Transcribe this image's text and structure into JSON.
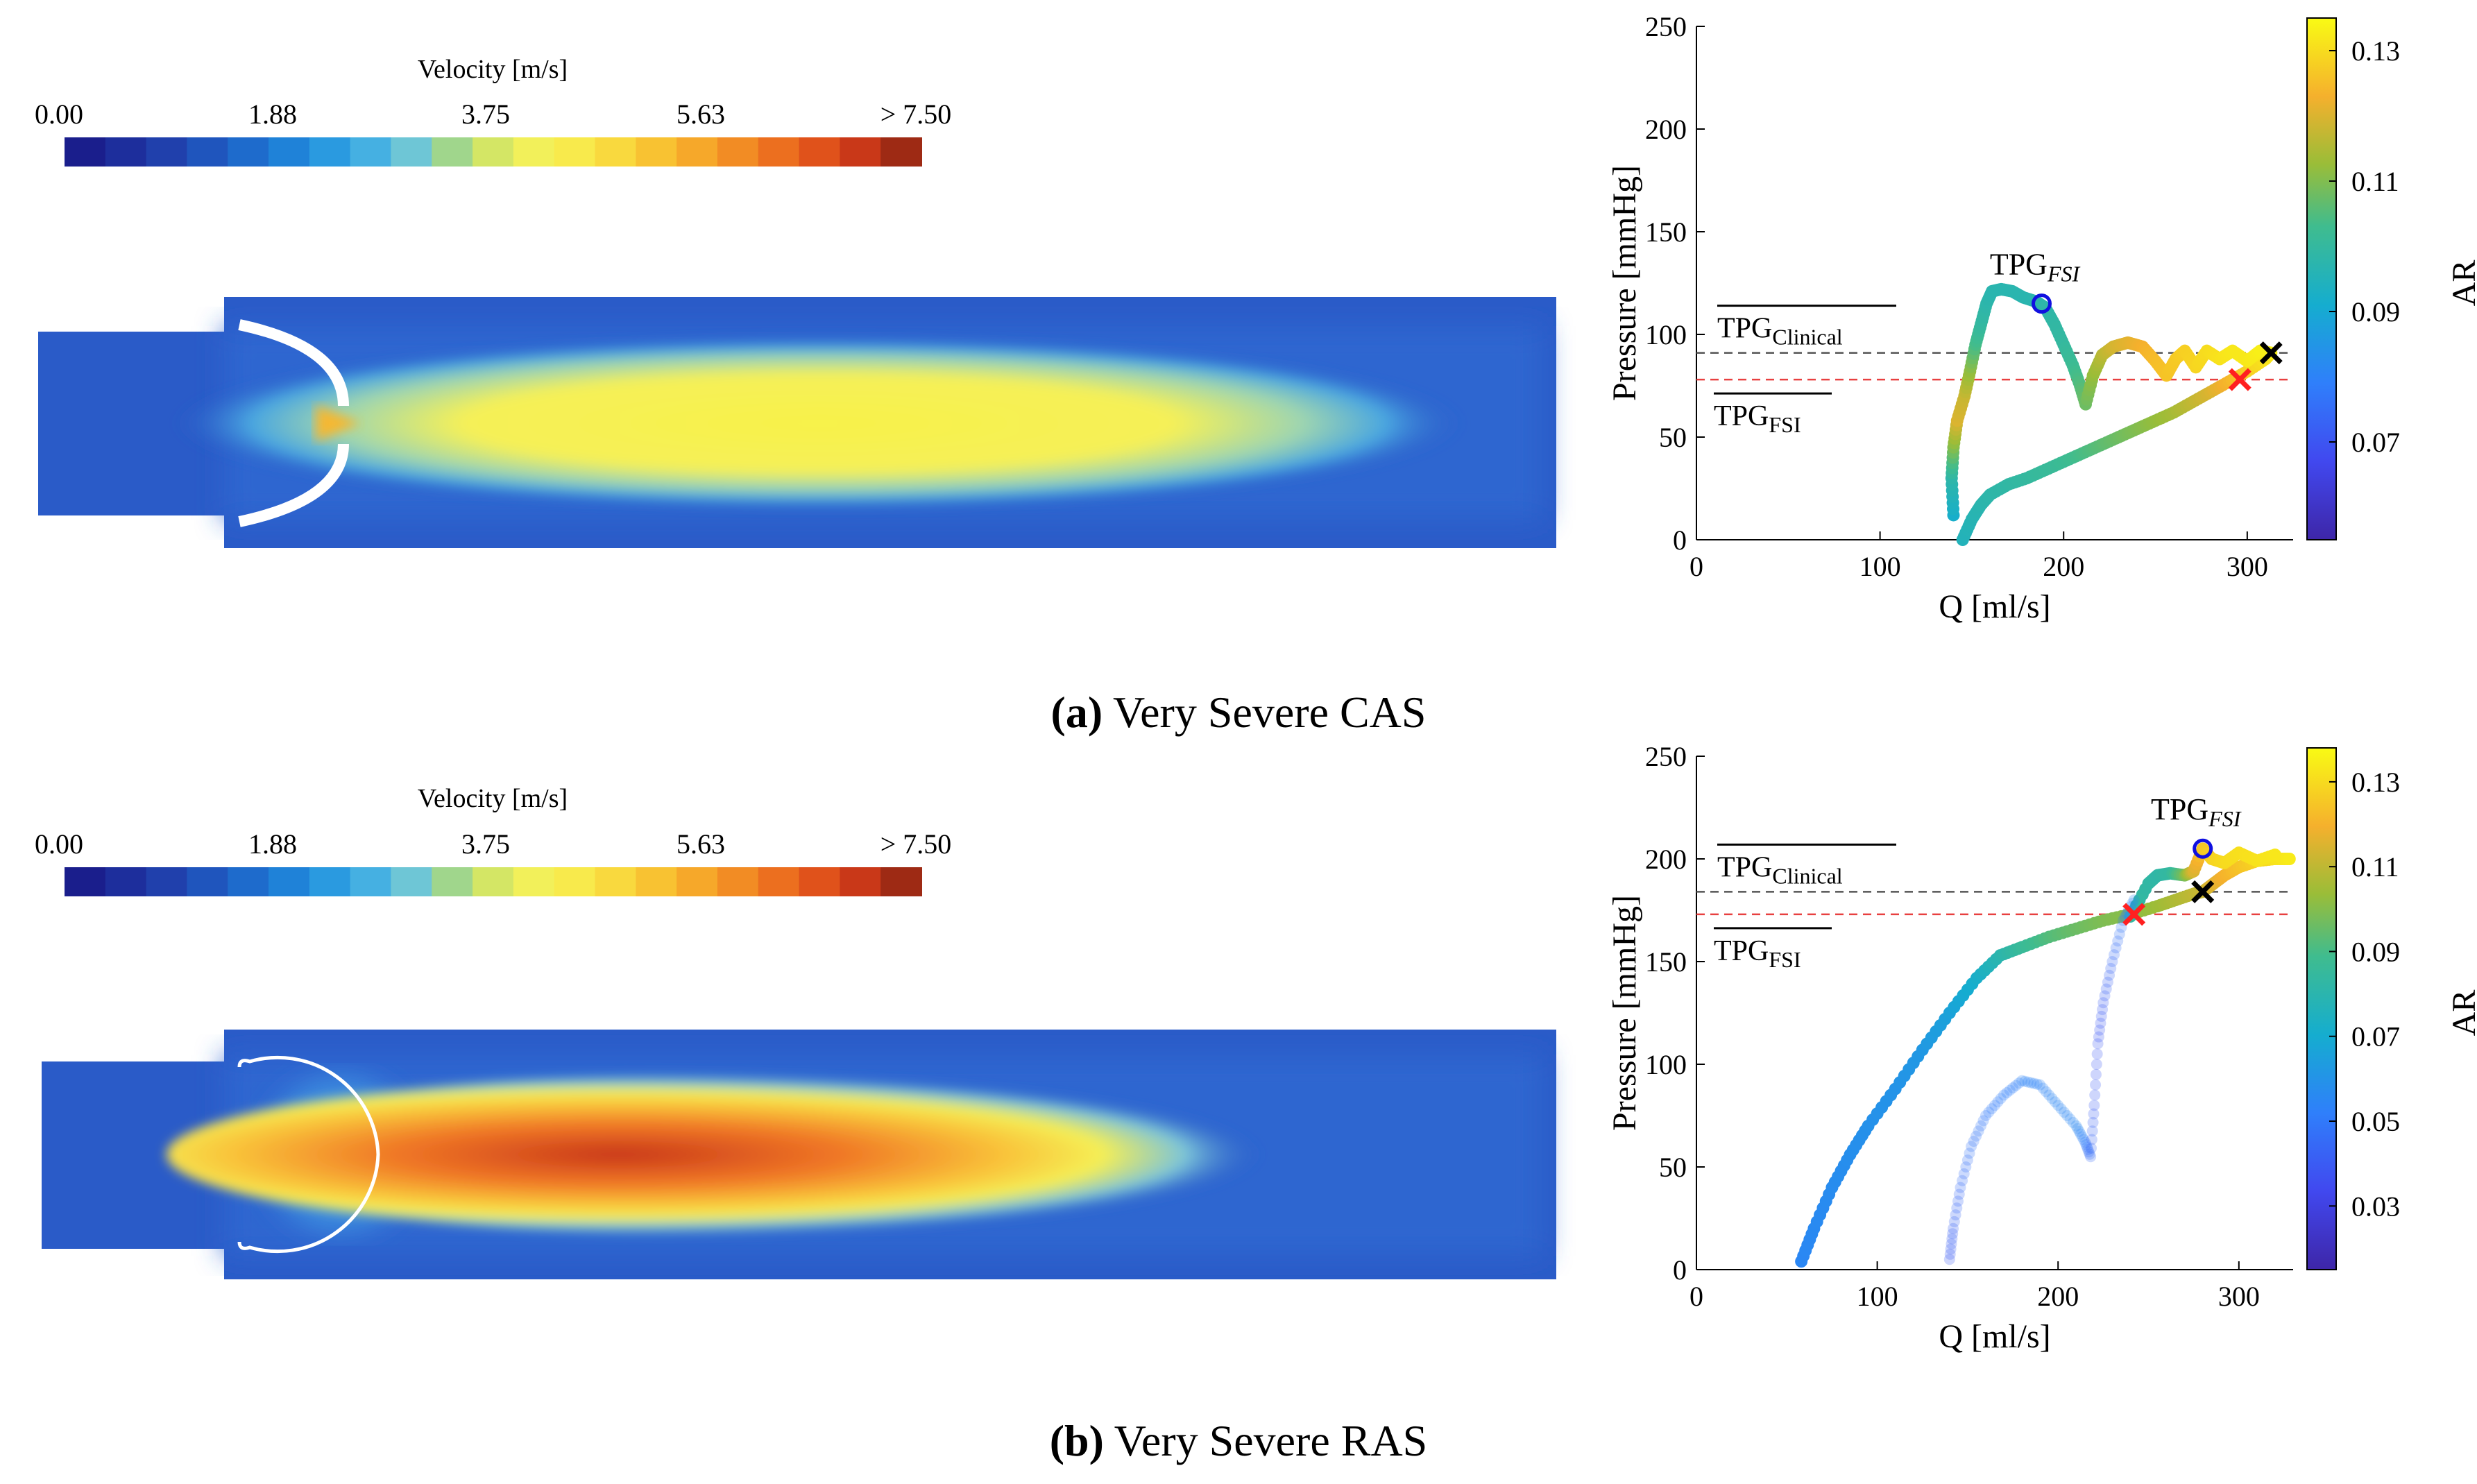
{
  "colorbar": {
    "title": "Velocity [m/s]",
    "ticks": [
      "0.00",
      "1.88",
      "3.75",
      "5.63",
      "> 7.50"
    ],
    "colors": [
      "#1a1e8c",
      "#1d2e9c",
      "#2040ac",
      "#1f55bd",
      "#1e6bcc",
      "#1f82d8",
      "#2a9ae0",
      "#45b0e2",
      "#6ec6d6",
      "#a0d68c",
      "#d4e665",
      "#f2f05a",
      "#f8ea4c",
      "#f9d93e",
      "#f8c232",
      "#f6a82a",
      "#f28c24",
      "#ec6f1f",
      "#e0521b",
      "#c93818",
      "#9e2a14"
    ]
  },
  "captions": [
    {
      "letter": "(a)",
      "text": "Very Severe CAS"
    },
    {
      "letter": "(b)",
      "text": "Very Severe RAS"
    }
  ],
  "chart_data": [
    {
      "type": "scatter",
      "panel": "a",
      "xlabel": "Q [ml/s]",
      "ylabel": "Pressure [mmHg]",
      "xlim": [
        0,
        325
      ],
      "ylim": [
        0,
        250
      ],
      "xticks": [
        "0",
        "100",
        "200",
        "300"
      ],
      "yticks": [
        "0",
        "50",
        "100",
        "150",
        "200",
        "250"
      ],
      "colorbar": {
        "label": "AR",
        "range": [
          0.055,
          0.135
        ],
        "ticks": [
          "0.07",
          "0.09",
          "0.11",
          "0.13"
        ]
      },
      "annotations": {
        "tpg_clinical": {
          "label": "TPG",
          "sub": "Clinical",
          "y": 91,
          "color": "#555555"
        },
        "tpg_fsi_line": {
          "label": "TPG",
          "sub": "FSI",
          "y": 78,
          "color": "#e84040"
        },
        "tpg_fsi_point": {
          "label": "TPG",
          "sub": "FSI",
          "x": 188,
          "y": 115,
          "color": "#1010e0"
        },
        "red_marker": {
          "x": 296,
          "y": 78,
          "color": "#ff2020"
        },
        "black_marker": {
          "x": 313,
          "y": 91,
          "color": "#000000"
        }
      },
      "series": [
        {
          "points": [
            [
              145,
              0,
              0.095
            ],
            [
              150,
              10,
              0.096
            ],
            [
              155,
              17,
              0.097
            ],
            [
              160,
              22,
              0.098
            ],
            [
              170,
              27,
              0.099
            ],
            [
              180,
              30,
              0.1
            ],
            [
              190,
              34,
              0.101
            ],
            [
              200,
              38,
              0.102
            ],
            [
              210,
              42,
              0.104
            ],
            [
              220,
              46,
              0.106
            ],
            [
              230,
              50,
              0.108
            ],
            [
              240,
              54,
              0.11
            ],
            [
              250,
              58,
              0.112
            ],
            [
              260,
              62,
              0.114
            ],
            [
              270,
              67,
              0.117
            ],
            [
              280,
              72,
              0.12
            ],
            [
              290,
              77,
              0.124
            ],
            [
              300,
              82,
              0.128
            ],
            [
              310,
              88,
              0.131
            ],
            [
              313,
              91,
              0.132
            ]
          ]
        },
        {
          "points": [
            [
              140,
              12,
              0.092
            ],
            [
              139,
              30,
              0.098
            ],
            [
              140,
              45,
              0.11
            ],
            [
              142,
              58,
              0.12
            ],
            [
              146,
              70,
              0.118
            ],
            [
              149,
              82,
              0.112
            ],
            [
              152,
              95,
              0.104
            ],
            [
              155,
              105,
              0.1
            ],
            [
              158,
              115,
              0.098
            ],
            [
              161,
              121,
              0.097
            ],
            [
              166,
              122,
              0.097
            ],
            [
              172,
              121,
              0.097
            ],
            [
              178,
              118,
              0.097
            ],
            [
              185,
              116,
              0.097
            ],
            [
              190,
              113,
              0.098
            ],
            [
              195,
              105,
              0.099
            ],
            [
              200,
              95,
              0.1
            ],
            [
              205,
              85,
              0.102
            ],
            [
              209,
              75,
              0.105
            ],
            [
              212,
              66,
              0.108
            ],
            [
              216,
              80,
              0.112
            ],
            [
              221,
              90,
              0.116
            ],
            [
              227,
              94,
              0.119
            ],
            [
              235,
              96,
              0.121
            ],
            [
              243,
              94,
              0.123
            ],
            [
              250,
              87,
              0.125
            ],
            [
              256,
              80,
              0.126
            ],
            [
              261,
              88,
              0.127
            ],
            [
              266,
              92,
              0.128
            ],
            [
              272,
              84,
              0.129
            ],
            [
              278,
              92,
              0.13
            ],
            [
              285,
              88,
              0.131
            ],
            [
              292,
              92,
              0.132
            ],
            [
              300,
              87,
              0.132
            ],
            [
              307,
              92,
              0.133
            ],
            [
              313,
              91,
              0.133
            ]
          ]
        }
      ]
    },
    {
      "type": "scatter",
      "panel": "b",
      "xlabel": "Q [ml/s]",
      "ylabel": "Pressure [mmHg]",
      "xlim": [
        0,
        330
      ],
      "ylim": [
        0,
        250
      ],
      "xticks": [
        "0",
        "100",
        "200",
        "300"
      ],
      "yticks": [
        "0",
        "50",
        "100",
        "150",
        "200",
        "250"
      ],
      "colorbar": {
        "label": "AR",
        "range": [
          0.015,
          0.138
        ],
        "ticks": [
          "0.03",
          "0.05",
          "0.07",
          "0.09",
          "0.11",
          "0.13"
        ]
      },
      "annotations": {
        "tpg_clinical": {
          "label": "TPG",
          "sub": "Clinical",
          "y": 184,
          "color": "#555555"
        },
        "tpg_fsi_line": {
          "label": "TPG",
          "sub": "FSI",
          "y": 173,
          "color": "#e84040"
        },
        "tpg_fsi_point": {
          "label": "TPG",
          "sub": "FSI",
          "x": 280,
          "y": 205,
          "color": "#1010e0"
        },
        "red_marker": {
          "x": 242,
          "y": 173,
          "color": "#ff2020"
        },
        "black_marker": {
          "x": 280,
          "y": 184,
          "color": "#000000"
        }
      },
      "series": [
        {
          "points": [
            [
              58,
              4,
              0.055
            ],
            [
              65,
              20,
              0.056
            ],
            [
              75,
              40,
              0.057
            ],
            [
              85,
              56,
              0.058
            ],
            [
              95,
              70,
              0.059
            ],
            [
              110,
              88,
              0.06
            ],
            [
              125,
              107,
              0.062
            ],
            [
              140,
              125,
              0.066
            ],
            [
              155,
              142,
              0.072
            ],
            [
              168,
              153,
              0.08
            ],
            [
              180,
              157,
              0.086
            ],
            [
              195,
              162,
              0.092
            ],
            [
              210,
              166,
              0.096
            ],
            [
              225,
              170,
              0.099
            ],
            [
              240,
              173,
              0.101
            ],
            [
              255,
              177,
              0.104
            ],
            [
              265,
              180,
              0.107
            ],
            [
              275,
              183,
              0.11
            ],
            [
              280,
              184,
              0.112
            ],
            [
              286,
              188,
              0.116
            ],
            [
              292,
              192,
              0.12
            ],
            [
              300,
              196,
              0.124
            ],
            [
              310,
              199,
              0.128
            ],
            [
              320,
              200,
              0.132
            ],
            [
              328,
              200,
              0.134
            ]
          ]
        },
        {
          "points": [
            [
              240,
              172,
              0.084
            ],
            [
              250,
              188,
              0.083
            ],
            [
              255,
              192,
              0.082
            ],
            [
              262,
              193,
              0.084
            ],
            [
              270,
              192,
              0.098
            ],
            [
              275,
              194,
              0.115
            ],
            [
              280,
              205,
              0.125
            ],
            [
              285,
              200,
              0.128
            ],
            [
              292,
              198,
              0.13
            ],
            [
              300,
              203,
              0.131
            ],
            [
              310,
              199,
              0.132
            ],
            [
              320,
              202,
              0.133
            ]
          ]
        },
        {
          "faint": true,
          "points": [
            [
              140,
              5,
              0.04
            ],
            [
              142,
              20,
              0.042
            ],
            [
              146,
              40,
              0.045
            ],
            [
              152,
              60,
              0.048
            ],
            [
              160,
              75,
              0.05
            ],
            [
              170,
              85,
              0.052
            ],
            [
              180,
              92,
              0.053
            ],
            [
              190,
              90,
              0.054
            ],
            [
              200,
              80,
              0.055
            ],
            [
              210,
              70,
              0.056
            ],
            [
              215,
              62,
              0.052
            ],
            [
              218,
              55,
              0.045
            ],
            [
              220,
              80,
              0.04
            ],
            [
              222,
              110,
              0.038
            ],
            [
              225,
              130,
              0.04
            ],
            [
              230,
              150,
              0.044
            ],
            [
              236,
              170,
              0.05
            ],
            [
              242,
              180,
              0.056
            ]
          ]
        }
      ]
    }
  ]
}
